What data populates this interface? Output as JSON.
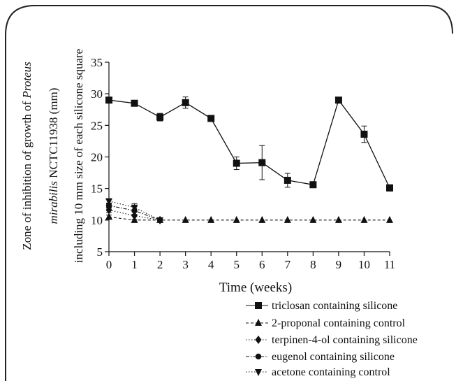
{
  "chart_data": {
    "type": "line",
    "xlabel": "Time (weeks)",
    "ylabel_lines": [
      {
        "parts": [
          {
            "text": "Zone of inhibition of growth of ",
            "italic": false
          },
          {
            "text": "Proteus",
            "italic": true
          }
        ]
      },
      {
        "parts": [
          {
            "text": "mirabilis",
            "italic": true
          },
          {
            "text": " NCTC11938 (mm)",
            "italic": false
          }
        ]
      },
      {
        "parts": [
          {
            "text": "including 10 mm size of each silicone square",
            "italic": false
          }
        ]
      }
    ],
    "xlim": [
      0,
      11
    ],
    "ylim": [
      5,
      35
    ],
    "x_ticks": [
      "0",
      "1",
      "2",
      "3",
      "4",
      "5",
      "6",
      "7",
      "8",
      "9",
      "10",
      "11"
    ],
    "y_ticks": [
      "5",
      "10",
      "15",
      "20",
      "25",
      "30",
      "35"
    ],
    "x": [
      0,
      1,
      2,
      3,
      4,
      5,
      6,
      7,
      8,
      9,
      10,
      11
    ],
    "series": [
      {
        "name": "triclosan containing silicone",
        "marker": "square",
        "line": "solid",
        "x": [
          0,
          1,
          2,
          3,
          4,
          5,
          6,
          7,
          8,
          9,
          10,
          11
        ],
        "values": [
          29,
          28.5,
          26.3,
          28.6,
          26.1,
          19,
          19.1,
          16.3,
          15.6,
          29,
          23.6,
          15.1
        ],
        "errors": [
          0.3,
          0.3,
          0.6,
          0.9,
          0.3,
          1.0,
          2.7,
          1.1,
          0.2,
          0.2,
          1.3,
          0.5
        ]
      },
      {
        "name": "2-proponal containing control",
        "marker": "triangle-up",
        "line": "dashed",
        "x": [
          0,
          1,
          2,
          3,
          4,
          5,
          6,
          7,
          8,
          9,
          10,
          11
        ],
        "values": [
          10.5,
          10,
          10,
          10,
          10,
          10,
          10,
          10,
          10,
          10,
          10,
          10
        ],
        "errors": [
          0.3,
          0,
          0,
          0,
          0,
          0,
          0,
          0,
          0,
          0,
          0,
          0
        ]
      },
      {
        "name": "terpinen-4-ol containing silicone",
        "marker": "diamond",
        "line": "dotted",
        "x": [
          0,
          1,
          2
        ],
        "values": [
          11.6,
          10.7,
          10
        ],
        "errors": [
          0.4,
          0.6,
          0
        ]
      },
      {
        "name": "eugenol containing silicone",
        "marker": "circle",
        "line": "dashdot",
        "x": [
          0,
          1,
          2
        ],
        "values": [
          12.3,
          11.5,
          10
        ],
        "errors": [
          0.4,
          0.6,
          0
        ]
      },
      {
        "name": "acetone containing control",
        "marker": "triangle-down",
        "line": "dotted",
        "x": [
          0,
          1,
          2
        ],
        "values": [
          13,
          12,
          10
        ],
        "errors": [
          0.4,
          0.6,
          0
        ]
      }
    ],
    "grid": false,
    "legend_position": "bottom-right"
  }
}
